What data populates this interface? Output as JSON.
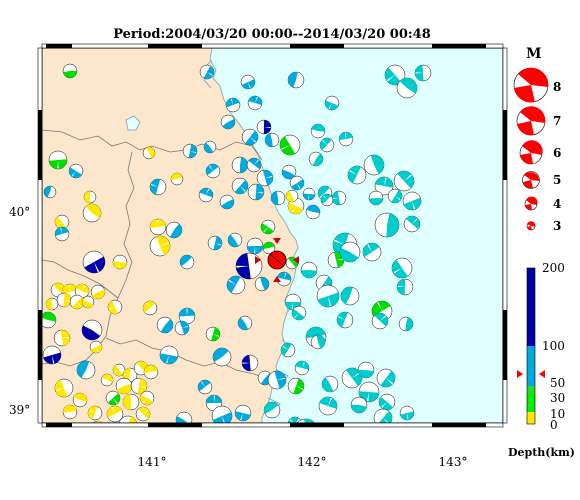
{
  "title": "Period:2004/03/20 00:00--2014/03/20 00:48",
  "map": {
    "lon_ticks": [
      "141°",
      "142°",
      "143°"
    ],
    "lat_ticks": [
      "40°",
      "39°"
    ],
    "colors": {
      "land": "#fce7cc",
      "sea": "#e0ffff",
      "coast": "#8fb0bb",
      "prefecture_border": "#777777",
      "frame_light": "#ffffff",
      "frame_dark": "#000000"
    }
  },
  "magnitude_legend": {
    "title": "M",
    "labels": [
      "8",
      "7",
      "6",
      "5",
      "4",
      "3"
    ],
    "color": "#ff0000"
  },
  "depth_scale": {
    "title": "Depth(km)",
    "labels": [
      "200",
      "100",
      "50",
      "30",
      "10",
      "0"
    ],
    "bands": [
      {
        "from": 100,
        "to": 200,
        "color": "#0000aa"
      },
      {
        "from": 50,
        "to": 100,
        "color": "#00aadd"
      },
      {
        "from": 30,
        "to": 50,
        "color": "#22dd22"
      },
      {
        "from": 10,
        "to": 30,
        "color": "#00ee00"
      },
      {
        "from": 0,
        "to": 10,
        "color": "#ffe800"
      }
    ],
    "marker_color": "#ff0000"
  },
  "depth_colors": {
    "shallow": "#ffe800",
    "mid": "#00dd00",
    "deep": "#00aadd",
    "cyan": "#00cccc",
    "very_deep": "#0000aa"
  },
  "highlighted_event": {
    "color": "#ff0000",
    "marker": "red-arrows"
  }
}
